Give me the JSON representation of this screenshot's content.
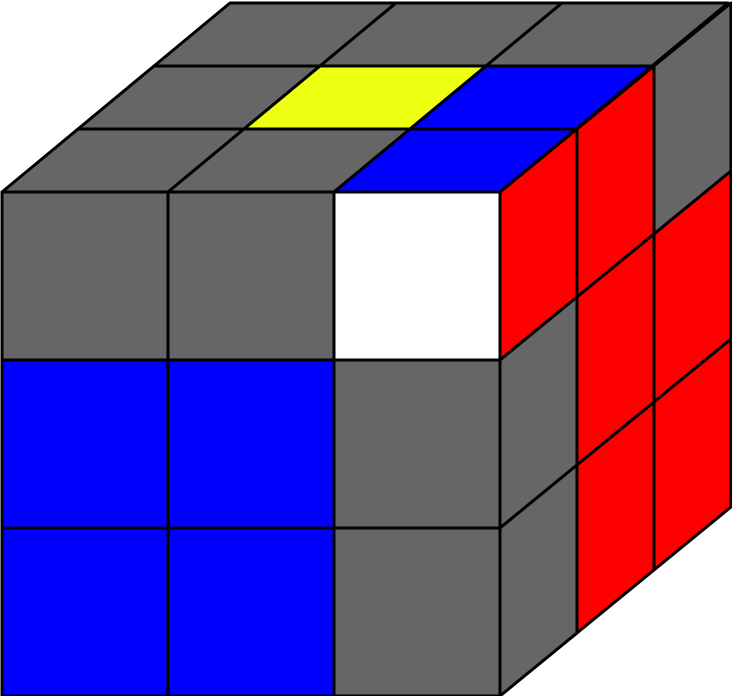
{
  "colors": {
    "gray": "#666666",
    "white": "#ffffff",
    "yellow": "#eeff11",
    "blue": "#0000ff",
    "red": "#ff0000",
    "edge": "#000000"
  },
  "cube": {
    "top": [
      [
        "gray",
        "gray",
        "gray"
      ],
      [
        "gray",
        "yellow",
        "blue"
      ],
      [
        "gray",
        "gray",
        "blue"
      ]
    ],
    "front": [
      [
        "gray",
        "gray",
        "white"
      ],
      [
        "blue",
        "blue",
        "gray"
      ],
      [
        "blue",
        "blue",
        "gray"
      ]
    ],
    "right": [
      [
        "red",
        "red",
        "gray"
      ],
      [
        "gray",
        "red",
        "red"
      ],
      [
        "gray",
        "red",
        "red"
      ]
    ]
  }
}
